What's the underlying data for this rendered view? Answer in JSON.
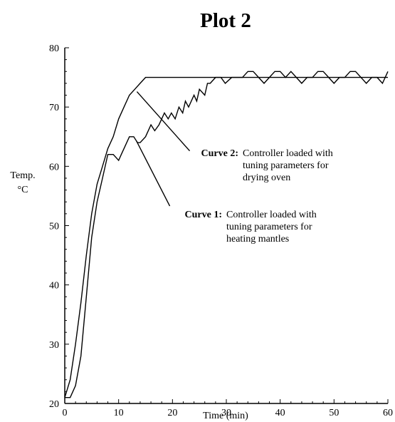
{
  "chart_data": {
    "type": "line",
    "title": "Plot 2",
    "xlabel": "Time (min)",
    "ylabel_line1": "Temp.",
    "ylabel_line2": "°C",
    "xlim": [
      0,
      60
    ],
    "ylim": [
      20,
      80
    ],
    "x_ticks": [
      0,
      10,
      20,
      30,
      40,
      50,
      60
    ],
    "y_ticks": [
      20,
      30,
      40,
      50,
      60,
      70,
      80
    ],
    "grid": false,
    "series": [
      {
        "name": "Curve 1",
        "x": [
          0,
          1,
          2,
          3,
          4,
          5,
          6,
          7,
          8,
          8.6,
          9,
          10,
          10.5,
          11,
          12,
          12.8,
          13.5,
          14,
          15,
          16,
          16.7,
          17.5,
          18.5,
          19.2,
          19.8,
          20.5,
          21.2,
          21.9,
          22.4,
          23,
          24,
          24.5,
          25,
          26,
          26.5,
          27,
          28,
          29,
          29.8,
          31,
          32,
          33,
          34,
          35,
          36,
          37,
          38,
          39,
          40,
          41,
          42,
          43,
          44,
          45,
          46,
          47,
          48,
          49,
          50,
          51,
          52,
          53,
          54,
          55,
          56,
          57,
          58,
          59,
          60
        ],
        "y": [
          21,
          21,
          23,
          28,
          38,
          48,
          54,
          58,
          62,
          62,
          62,
          61,
          62,
          63,
          65,
          65,
          64,
          64,
          65,
          67,
          66,
          67,
          69,
          68,
          69,
          68,
          70,
          69,
          71,
          70,
          72,
          71,
          73,
          72,
          74,
          74,
          75,
          75,
          74,
          75,
          75,
          75,
          76,
          76,
          75,
          74,
          75,
          76,
          76,
          75,
          76,
          75,
          74,
          75,
          75,
          76,
          76,
          75,
          74,
          75,
          75,
          76,
          76,
          75,
          74,
          75,
          75,
          74,
          76
        ]
      },
      {
        "name": "Curve 2",
        "x": [
          0,
          1,
          2,
          3,
          4,
          5,
          6,
          7,
          8,
          9,
          10,
          11,
          12,
          13,
          14,
          15,
          16,
          20,
          30,
          40,
          50,
          60
        ],
        "y": [
          21,
          24,
          30,
          37,
          45,
          52,
          57,
          60,
          63,
          65,
          68,
          70,
          72,
          73,
          74,
          75,
          75,
          75,
          75,
          75,
          75,
          75
        ]
      }
    ],
    "annotations": [
      {
        "label": "Curve 2:",
        "text_lines": [
          "Controller loaded with",
          "tuning parameters for",
          "drying oven"
        ],
        "pointer_from": [
          23.2,
          62.6
        ],
        "pointer_to": [
          13.4,
          72.6
        ]
      },
      {
        "label": "Curve 1:",
        "text_lines": [
          "Controller loaded with",
          "tuning parameters for",
          "heating mantles"
        ],
        "pointer_from": [
          19.5,
          53.3
        ],
        "pointer_to": [
          13.3,
          64.3
        ]
      }
    ]
  }
}
